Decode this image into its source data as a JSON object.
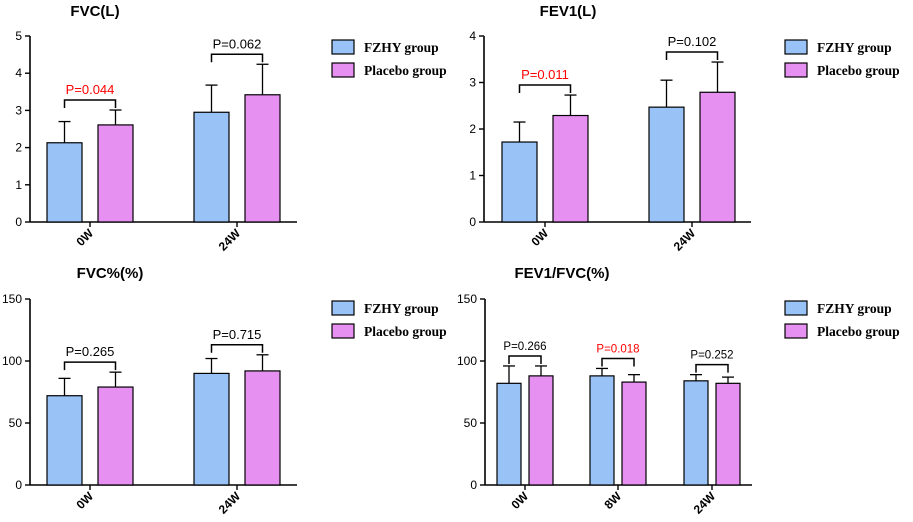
{
  "legend": {
    "series_a": "FZHY group",
    "series_b": "Placebo group"
  },
  "colors": {
    "series_a": "#99c2f7",
    "series_b": "#e691f2",
    "significant": "#ff0000",
    "axis": "#000000"
  },
  "chart_data": [
    {
      "type": "bar",
      "title": "FVC(L)",
      "categories": [
        "0W",
        "24W"
      ],
      "ylim": [
        0,
        5
      ],
      "yticks": [
        0,
        1,
        2,
        3,
        4,
        5
      ],
      "series": [
        {
          "name": "FZHY group",
          "values": [
            2.13,
            2.95
          ],
          "errors": [
            0.57,
            0.73
          ]
        },
        {
          "name": "Placebo group",
          "values": [
            2.61,
            3.42
          ],
          "errors": [
            0.4,
            0.82
          ]
        }
      ],
      "comparisons": [
        {
          "label": "P=0.044",
          "significant": true
        },
        {
          "label": "P=0.062",
          "significant": false
        }
      ],
      "xlabel": "",
      "ylabel": ""
    },
    {
      "type": "bar",
      "title": "FEV1(L)",
      "categories": [
        "0W",
        "24W"
      ],
      "ylim": [
        0,
        4
      ],
      "yticks": [
        0,
        1,
        2,
        3,
        4
      ],
      "series": [
        {
          "name": "FZHY group",
          "values": [
            1.72,
            2.47
          ],
          "errors": [
            0.43,
            0.58
          ]
        },
        {
          "name": "Placebo group",
          "values": [
            2.29,
            2.79
          ],
          "errors": [
            0.44,
            0.65
          ]
        }
      ],
      "comparisons": [
        {
          "label": "P=0.011",
          "significant": true
        },
        {
          "label": "P=0.102",
          "significant": false
        }
      ],
      "xlabel": "",
      "ylabel": ""
    },
    {
      "type": "bar",
      "title": "FVC%(%)",
      "categories": [
        "0W",
        "24W"
      ],
      "ylim": [
        0,
        150
      ],
      "yticks": [
        0,
        50,
        100,
        150
      ],
      "series": [
        {
          "name": "FZHY group",
          "values": [
            72,
            90
          ],
          "errors": [
            14,
            12
          ]
        },
        {
          "name": "Placebo group",
          "values": [
            79,
            92
          ],
          "errors": [
            12,
            13
          ]
        }
      ],
      "comparisons": [
        {
          "label": "P=0.265",
          "significant": false
        },
        {
          "label": "P=0.715",
          "significant": false
        }
      ],
      "xlabel": "",
      "ylabel": ""
    },
    {
      "type": "bar",
      "title": "FEV1/FVC(%)",
      "categories": [
        "0W",
        "8W",
        "24W"
      ],
      "ylim": [
        0,
        150
      ],
      "yticks": [
        0,
        50,
        100,
        150
      ],
      "series": [
        {
          "name": "FZHY group",
          "values": [
            82,
            88,
            84
          ],
          "errors": [
            14,
            6,
            5
          ]
        },
        {
          "name": "Placebo group",
          "values": [
            88,
            83,
            82
          ],
          "errors": [
            8,
            6,
            5
          ]
        }
      ],
      "comparisons": [
        {
          "label": "P=0.266",
          "significant": false
        },
        {
          "label": "P=0.018",
          "significant": true
        },
        {
          "label": "P=0.252",
          "significant": false
        }
      ],
      "xlabel": "",
      "ylabel": ""
    }
  ]
}
